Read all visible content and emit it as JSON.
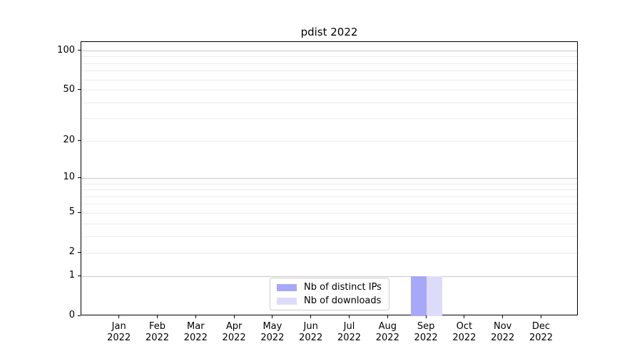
{
  "chart_data": {
    "type": "bar",
    "title": "pdist 2022",
    "categories": [
      "Jan 2022",
      "Feb 2022",
      "Mar 2022",
      "Apr 2022",
      "May 2022",
      "Jun 2022",
      "Jul 2022",
      "Aug 2022",
      "Sep 2022",
      "Oct 2022",
      "Nov 2022",
      "Dec 2022"
    ],
    "series": [
      {
        "name": "Nb of distinct IPs",
        "color": "#a8a8f8",
        "values": [
          0,
          0,
          0,
          0,
          0,
          0,
          0,
          0,
          1,
          0,
          0,
          0
        ]
      },
      {
        "name": "Nb of downloads",
        "color": "#dcdcfa",
        "values": [
          0,
          0,
          0,
          0,
          0,
          0,
          0,
          0,
          1,
          0,
          0,
          0
        ]
      }
    ],
    "yscale": "log1p",
    "ylim": [
      0,
      117
    ],
    "y_ticks": [
      0,
      1,
      2,
      5,
      10,
      20,
      50,
      100
    ],
    "y_major_gridlines": [
      1,
      10,
      100
    ],
    "y_minor_gridlines": [
      2,
      3,
      4,
      5,
      6,
      7,
      8,
      9,
      20,
      30,
      40,
      50,
      60,
      70,
      80,
      90
    ],
    "grid": "horizontal",
    "legend_position": "lower center"
  },
  "legend": {
    "items": [
      {
        "label": "Nb of distinct IPs",
        "color": "#a8a8f8"
      },
      {
        "label": "Nb of downloads",
        "color": "#dcdcfa"
      }
    ]
  },
  "colors": {
    "spine": "#000000",
    "text": "#000000",
    "major_grid": "#c9c9c9",
    "minor_grid": "#ebebeb",
    "legend_border": "#cccccc"
  }
}
